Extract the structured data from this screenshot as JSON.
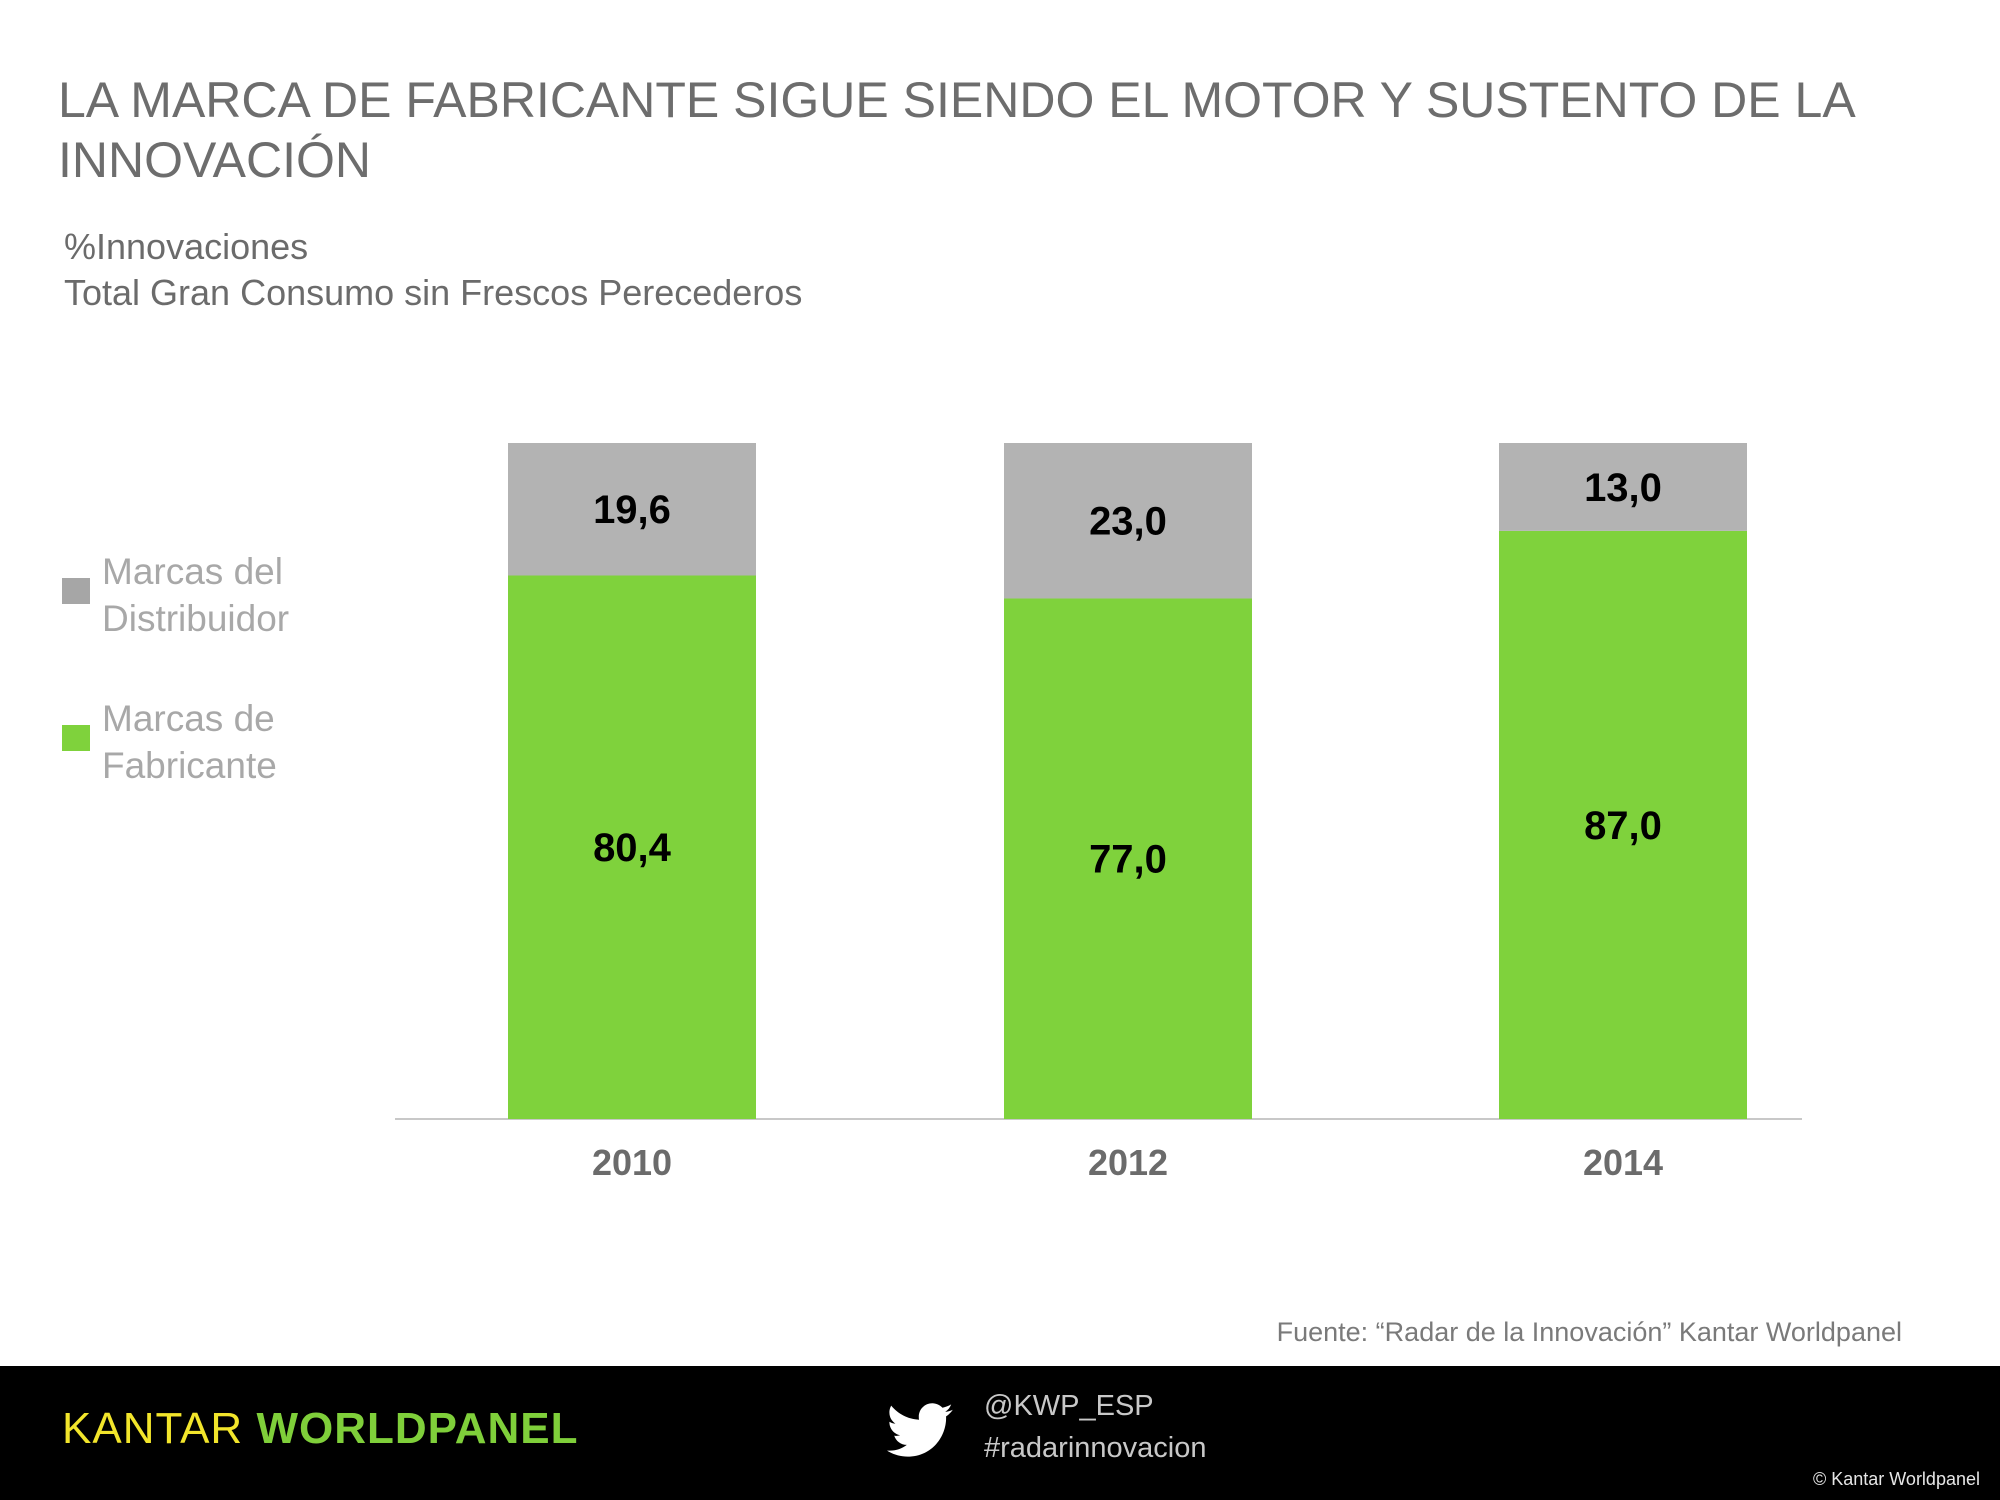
{
  "title": "LA MARCA DE FABRICANTE SIGUE SIENDO EL MOTOR Y SUSTENTO DE LA INNOVACIÓN",
  "subtitle_line1": "%Innovaciones",
  "subtitle_line2": "Total Gran Consumo sin Frescos Perecederos",
  "legend": [
    {
      "label_lines": [
        "Marcas del",
        "Distribuidor"
      ],
      "color": "#a6a6a6"
    },
    {
      "label_lines": [
        "Marcas de",
        "Fabricante"
      ],
      "color": "#7fd23c"
    }
  ],
  "chart_data": {
    "type": "bar",
    "stacked": true,
    "title": "%Innovaciones",
    "categories": [
      "2010",
      "2012",
      "2014"
    ],
    "series": [
      {
        "name": "Marcas de Fabricante",
        "values": [
          80.4,
          77.0,
          87.0
        ],
        "labels": [
          "80,4",
          "77,0",
          "87,0"
        ],
        "color": "#7fd23c"
      },
      {
        "name": "Marcas del Distribuidor",
        "values": [
          19.6,
          23.0,
          13.0
        ],
        "labels": [
          "19,6",
          "23,0",
          "13,0"
        ],
        "color": "#b3b3b3"
      }
    ],
    "ylim": [
      0,
      100
    ],
    "xlabel": "",
    "ylabel": "",
    "legend_position": "left"
  },
  "source": "Fuente: “Radar de la Innovación” Kantar Worldpanel",
  "footer": {
    "logo_part1": "KANTAR ",
    "logo_part2": "WORLDPANEL",
    "twitter_handle": "@KWP_ESP",
    "hashtag": "#radarinnovacion",
    "copyright": "© Kantar Worldpanel",
    "background": "#000000"
  }
}
